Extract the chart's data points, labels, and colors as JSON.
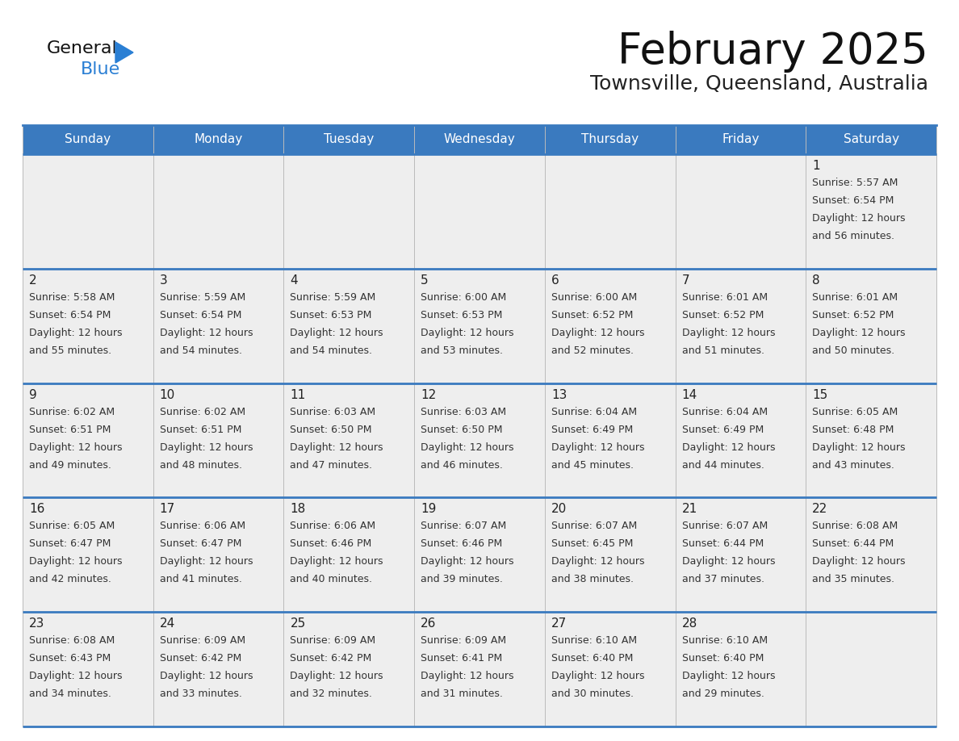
{
  "title": "February 2025",
  "subtitle": "Townsville, Queensland, Australia",
  "days_of_week": [
    "Sunday",
    "Monday",
    "Tuesday",
    "Wednesday",
    "Thursday",
    "Friday",
    "Saturday"
  ],
  "header_bg": "#3a7abf",
  "header_text": "#ffffff",
  "cell_bg": "#eeeeee",
  "border_color": "#3a7abf",
  "day_number_color": "#222222",
  "cell_text_color": "#333333",
  "title_color": "#111111",
  "subtitle_color": "#222222",
  "logo_black": "#111111",
  "logo_blue": "#2a7fd4",
  "calendar_data": [
    {
      "day": 1,
      "row": 0,
      "col": 6,
      "sunrise": "5:57 AM",
      "sunset": "6:54 PM",
      "daylight": "12 hours and 56 minutes."
    },
    {
      "day": 2,
      "row": 1,
      "col": 0,
      "sunrise": "5:58 AM",
      "sunset": "6:54 PM",
      "daylight": "12 hours and 55 minutes."
    },
    {
      "day": 3,
      "row": 1,
      "col": 1,
      "sunrise": "5:59 AM",
      "sunset": "6:54 PM",
      "daylight": "12 hours and 54 minutes."
    },
    {
      "day": 4,
      "row": 1,
      "col": 2,
      "sunrise": "5:59 AM",
      "sunset": "6:53 PM",
      "daylight": "12 hours and 54 minutes."
    },
    {
      "day": 5,
      "row": 1,
      "col": 3,
      "sunrise": "6:00 AM",
      "sunset": "6:53 PM",
      "daylight": "12 hours and 53 minutes."
    },
    {
      "day": 6,
      "row": 1,
      "col": 4,
      "sunrise": "6:00 AM",
      "sunset": "6:52 PM",
      "daylight": "12 hours and 52 minutes."
    },
    {
      "day": 7,
      "row": 1,
      "col": 5,
      "sunrise": "6:01 AM",
      "sunset": "6:52 PM",
      "daylight": "12 hours and 51 minutes."
    },
    {
      "day": 8,
      "row": 1,
      "col": 6,
      "sunrise": "6:01 AM",
      "sunset": "6:52 PM",
      "daylight": "12 hours and 50 minutes."
    },
    {
      "day": 9,
      "row": 2,
      "col": 0,
      "sunrise": "6:02 AM",
      "sunset": "6:51 PM",
      "daylight": "12 hours and 49 minutes."
    },
    {
      "day": 10,
      "row": 2,
      "col": 1,
      "sunrise": "6:02 AM",
      "sunset": "6:51 PM",
      "daylight": "12 hours and 48 minutes."
    },
    {
      "day": 11,
      "row": 2,
      "col": 2,
      "sunrise": "6:03 AM",
      "sunset": "6:50 PM",
      "daylight": "12 hours and 47 minutes."
    },
    {
      "day": 12,
      "row": 2,
      "col": 3,
      "sunrise": "6:03 AM",
      "sunset": "6:50 PM",
      "daylight": "12 hours and 46 minutes."
    },
    {
      "day": 13,
      "row": 2,
      "col": 4,
      "sunrise": "6:04 AM",
      "sunset": "6:49 PM",
      "daylight": "12 hours and 45 minutes."
    },
    {
      "day": 14,
      "row": 2,
      "col": 5,
      "sunrise": "6:04 AM",
      "sunset": "6:49 PM",
      "daylight": "12 hours and 44 minutes."
    },
    {
      "day": 15,
      "row": 2,
      "col": 6,
      "sunrise": "6:05 AM",
      "sunset": "6:48 PM",
      "daylight": "12 hours and 43 minutes."
    },
    {
      "day": 16,
      "row": 3,
      "col": 0,
      "sunrise": "6:05 AM",
      "sunset": "6:47 PM",
      "daylight": "12 hours and 42 minutes."
    },
    {
      "day": 17,
      "row": 3,
      "col": 1,
      "sunrise": "6:06 AM",
      "sunset": "6:47 PM",
      "daylight": "12 hours and 41 minutes."
    },
    {
      "day": 18,
      "row": 3,
      "col": 2,
      "sunrise": "6:06 AM",
      "sunset": "6:46 PM",
      "daylight": "12 hours and 40 minutes."
    },
    {
      "day": 19,
      "row": 3,
      "col": 3,
      "sunrise": "6:07 AM",
      "sunset": "6:46 PM",
      "daylight": "12 hours and 39 minutes."
    },
    {
      "day": 20,
      "row": 3,
      "col": 4,
      "sunrise": "6:07 AM",
      "sunset": "6:45 PM",
      "daylight": "12 hours and 38 minutes."
    },
    {
      "day": 21,
      "row": 3,
      "col": 5,
      "sunrise": "6:07 AM",
      "sunset": "6:44 PM",
      "daylight": "12 hours and 37 minutes."
    },
    {
      "day": 22,
      "row": 3,
      "col": 6,
      "sunrise": "6:08 AM",
      "sunset": "6:44 PM",
      "daylight": "12 hours and 35 minutes."
    },
    {
      "day": 23,
      "row": 4,
      "col": 0,
      "sunrise": "6:08 AM",
      "sunset": "6:43 PM",
      "daylight": "12 hours and 34 minutes."
    },
    {
      "day": 24,
      "row": 4,
      "col": 1,
      "sunrise": "6:09 AM",
      "sunset": "6:42 PM",
      "daylight": "12 hours and 33 minutes."
    },
    {
      "day": 25,
      "row": 4,
      "col": 2,
      "sunrise": "6:09 AM",
      "sunset": "6:42 PM",
      "daylight": "12 hours and 32 minutes."
    },
    {
      "day": 26,
      "row": 4,
      "col": 3,
      "sunrise": "6:09 AM",
      "sunset": "6:41 PM",
      "daylight": "12 hours and 31 minutes."
    },
    {
      "day": 27,
      "row": 4,
      "col": 4,
      "sunrise": "6:10 AM",
      "sunset": "6:40 PM",
      "daylight": "12 hours and 30 minutes."
    },
    {
      "day": 28,
      "row": 4,
      "col": 5,
      "sunrise": "6:10 AM",
      "sunset": "6:40 PM",
      "daylight": "12 hours and 29 minutes."
    }
  ]
}
